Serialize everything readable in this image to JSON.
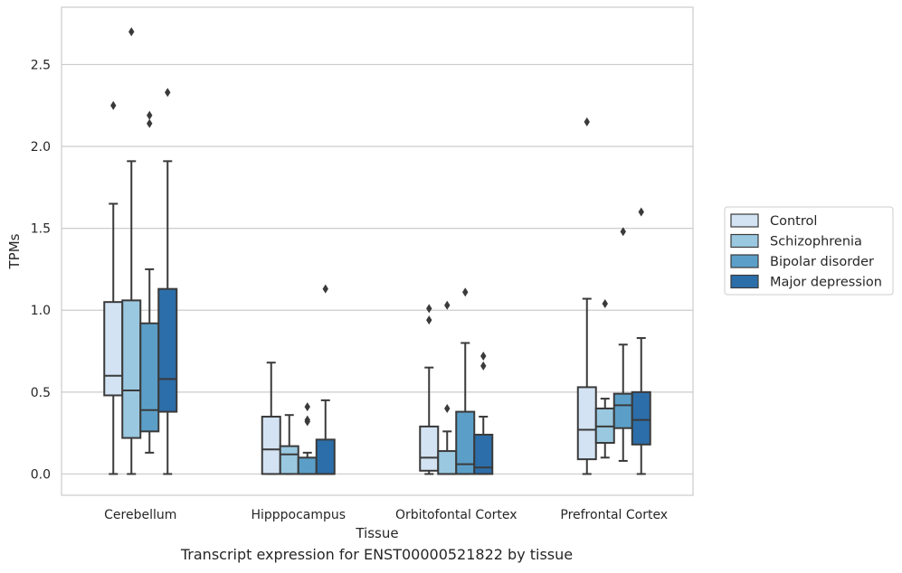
{
  "chart_data": {
    "type": "boxplot",
    "xlabel": "Tissue",
    "ylabel": "TPMs",
    "ylim": [
      -0.13,
      2.85
    ],
    "yticks": [
      0.0,
      0.5,
      1.0,
      1.5,
      2.0,
      2.5
    ],
    "ytick_labels": [
      "0.0",
      "0.5",
      "1.0",
      "1.5",
      "2.0",
      "2.5"
    ],
    "grid": "y",
    "legend_position": "right",
    "categories": [
      "Cerebellum",
      "Hipppocampus",
      "Orbitofontal Cortex",
      "Prefrontal Cortex"
    ],
    "series": [
      {
        "name": "Control",
        "color": "#d3e3f3",
        "boxes": [
          {
            "whisker_low": 0.0,
            "q1": 0.48,
            "median": 0.6,
            "q3": 1.05,
            "whisker_high": 1.65,
            "outliers": [
              2.25
            ]
          },
          {
            "whisker_low": 0.0,
            "q1": 0.0,
            "median": 0.15,
            "q3": 0.35,
            "whisker_high": 0.68,
            "outliers": []
          },
          {
            "whisker_low": 0.0,
            "q1": 0.02,
            "median": 0.1,
            "q3": 0.29,
            "whisker_high": 0.65,
            "outliers": [
              0.94,
              1.01
            ]
          },
          {
            "whisker_low": 0.0,
            "q1": 0.09,
            "median": 0.27,
            "q3": 0.53,
            "whisker_high": 1.07,
            "outliers": [
              2.15
            ]
          }
        ]
      },
      {
        "name": "Schizophrenia",
        "color": "#9ac8e0",
        "boxes": [
          {
            "whisker_low": 0.0,
            "q1": 0.22,
            "median": 0.51,
            "q3": 1.06,
            "whisker_high": 1.91,
            "outliers": [
              2.7
            ]
          },
          {
            "whisker_low": 0.0,
            "q1": 0.0,
            "median": 0.12,
            "q3": 0.17,
            "whisker_high": 0.36,
            "outliers": []
          },
          {
            "whisker_low": 0.0,
            "q1": 0.0,
            "median": 0.0,
            "q3": 0.14,
            "whisker_high": 0.26,
            "outliers": [
              0.4,
              1.03
            ]
          },
          {
            "whisker_low": 0.1,
            "q1": 0.19,
            "median": 0.29,
            "q3": 0.4,
            "whisker_high": 0.46,
            "outliers": [
              1.04
            ]
          }
        ]
      },
      {
        "name": "Bipolar disorder",
        "color": "#5b9fc8",
        "boxes": [
          {
            "whisker_low": 0.13,
            "q1": 0.26,
            "median": 0.39,
            "q3": 0.92,
            "whisker_high": 1.25,
            "outliers": [
              2.14,
              2.19
            ]
          },
          {
            "whisker_low": 0.0,
            "q1": 0.0,
            "median": 0.0,
            "q3": 0.1,
            "whisker_high": 0.13,
            "outliers": [
              0.32,
              0.33,
              0.41
            ]
          },
          {
            "whisker_low": 0.0,
            "q1": 0.0,
            "median": 0.06,
            "q3": 0.38,
            "whisker_high": 0.8,
            "outliers": [
              1.11
            ]
          },
          {
            "whisker_low": 0.08,
            "q1": 0.28,
            "median": 0.42,
            "q3": 0.49,
            "whisker_high": 0.79,
            "outliers": [
              1.48
            ]
          }
        ]
      },
      {
        "name": "Major depression",
        "color": "#2c6ea9",
        "boxes": [
          {
            "whisker_low": 0.0,
            "q1": 0.38,
            "median": 0.58,
            "q3": 1.13,
            "whisker_high": 1.91,
            "outliers": [
              2.33
            ]
          },
          {
            "whisker_low": 0.0,
            "q1": 0.0,
            "median": 0.0,
            "q3": 0.21,
            "whisker_high": 0.45,
            "outliers": [
              1.13
            ]
          },
          {
            "whisker_low": 0.0,
            "q1": 0.0,
            "median": 0.04,
            "q3": 0.24,
            "whisker_high": 0.35,
            "outliers": [
              0.66,
              0.72
            ]
          },
          {
            "whisker_low": 0.0,
            "q1": 0.18,
            "median": 0.33,
            "q3": 0.5,
            "whisker_high": 0.83,
            "outliers": [
              1.6
            ]
          }
        ]
      }
    ],
    "caption": "Transcript expression for ENST00000521822 by tissue"
  }
}
